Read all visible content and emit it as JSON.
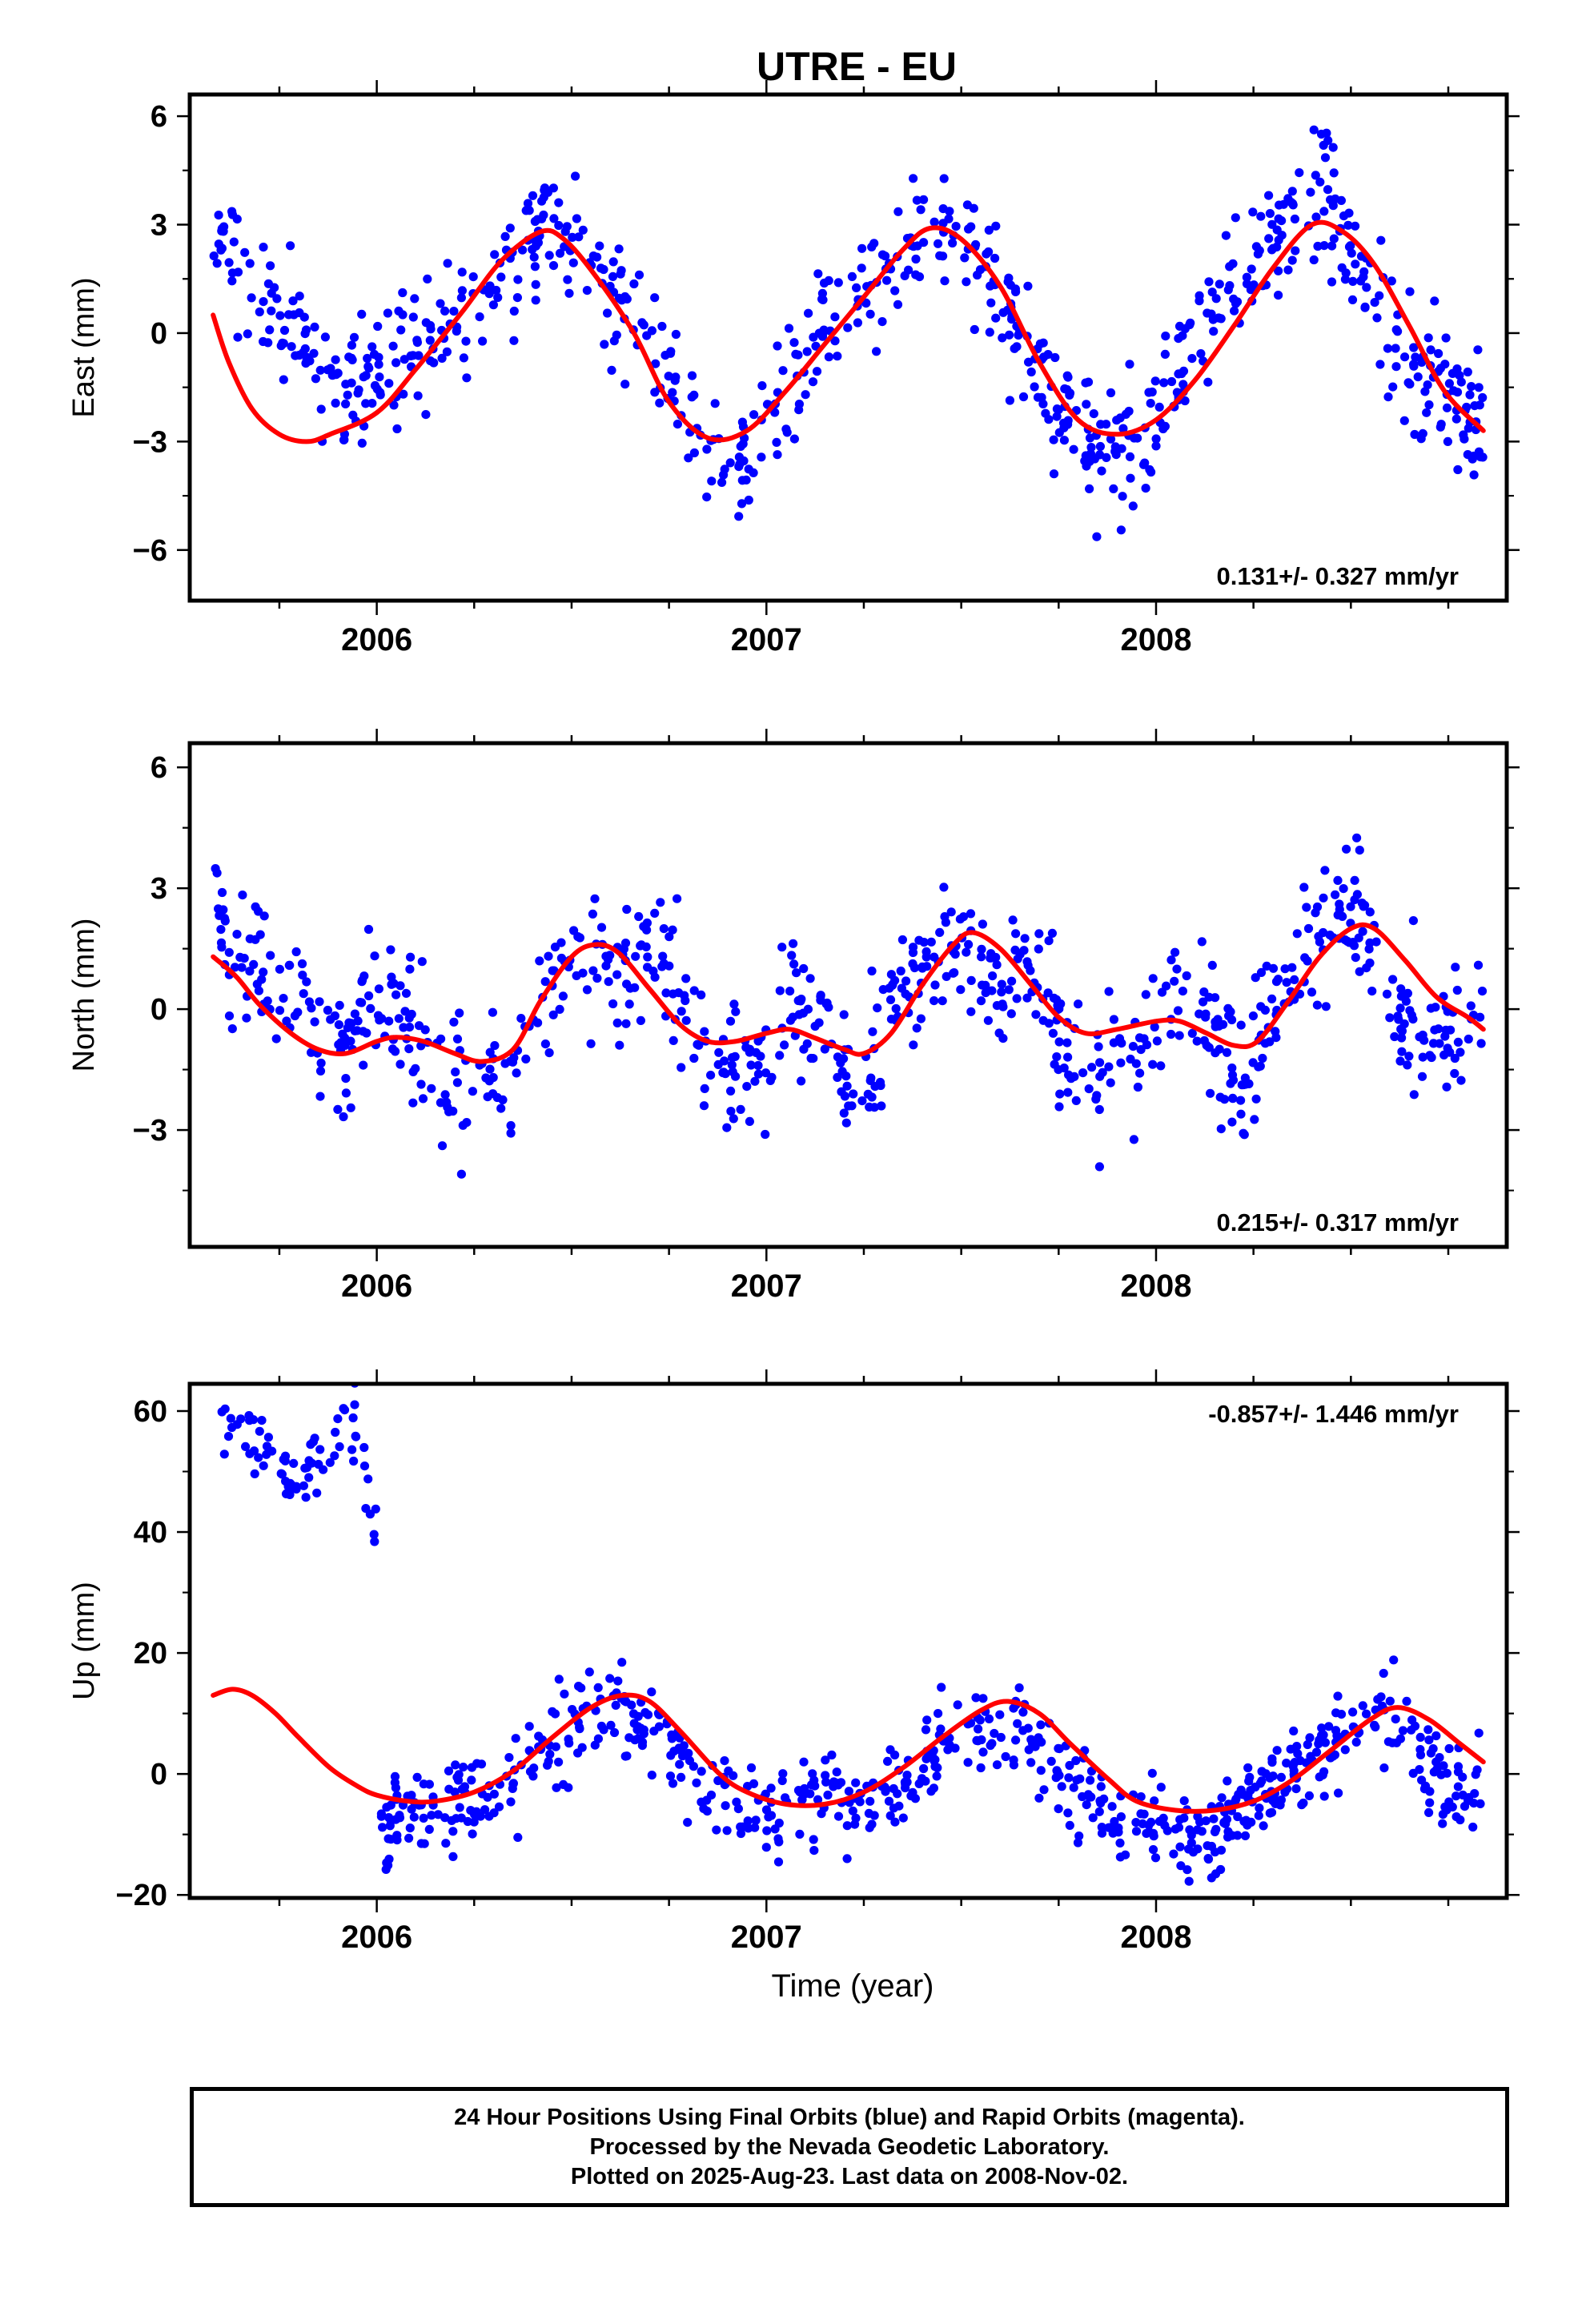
{
  "title": "UTRE - EU",
  "xlabel": "Time (year)",
  "colors": {
    "points": "#0000ff",
    "fit": "#ff0000",
    "axis": "#000000"
  },
  "footer": {
    "line1": "24 Hour Positions Using Final Orbits (blue) and Rapid Orbits (magenta).",
    "line2": "Processed by the Nevada Geodetic Laboratory.",
    "line3": "Plotted on 2025-Aug-23. Last data on 2008-Nov-02."
  },
  "chart_data": [
    {
      "type": "scatter",
      "ylabel": "East (mm)",
      "rate_label": "0.131+/- 0.327 mm/yr",
      "rate_position": "bottom-right",
      "xlim": [
        2005.52,
        2008.9
      ],
      "ylim": [
        -7.4,
        6.6
      ],
      "x_ticks": [
        2006,
        2007,
        2008
      ],
      "y_ticks": [
        -6,
        -3,
        0,
        3,
        6
      ],
      "y_tick_labels": [
        "−6",
        "−3",
        "0",
        "3",
        "6"
      ],
      "series": [
        {
          "role": "observations",
          "color": "#0000ff",
          "anchors": [
            [
              2005.58,
              2.6
            ],
            [
              2005.65,
              1.8
            ],
            [
              2005.75,
              1.0
            ],
            [
              2005.84,
              -1.0
            ],
            [
              2005.9,
              -1.8
            ],
            [
              2006.0,
              -1.0
            ],
            [
              2006.15,
              0.2
            ],
            [
              2006.3,
              1.3
            ],
            [
              2006.45,
              3.2
            ],
            [
              2006.55,
              1.8
            ],
            [
              2006.65,
              0.0
            ],
            [
              2006.75,
              -1.5
            ],
            [
              2006.85,
              -3.2
            ],
            [
              2006.92,
              -4.5
            ],
            [
              2007.0,
              -1.8
            ],
            [
              2007.1,
              -0.8
            ],
            [
              2007.25,
              1.2
            ],
            [
              2007.4,
              3.0
            ],
            [
              2007.5,
              2.6
            ],
            [
              2007.6,
              1.0
            ],
            [
              2007.72,
              -1.5
            ],
            [
              2007.82,
              -2.8
            ],
            [
              2007.92,
              -3.6
            ],
            [
              2008.05,
              -1.2
            ],
            [
              2008.2,
              1.2
            ],
            [
              2008.35,
              3.2
            ],
            [
              2008.42,
              4.2
            ],
            [
              2008.5,
              2.0
            ],
            [
              2008.6,
              0.2
            ],
            [
              2008.7,
              -1.5
            ],
            [
              2008.84,
              -2.5
            ]
          ],
          "scatter": 0.9,
          "n": 780
        },
        {
          "role": "fit",
          "color": "#ff0000",
          "anchors": [
            [
              2005.58,
              0.5
            ],
            [
              2005.62,
              -0.8
            ],
            [
              2005.68,
              -2.1
            ],
            [
              2005.75,
              -2.8
            ],
            [
              2005.82,
              -3.0
            ],
            [
              2005.88,
              -2.8
            ],
            [
              2006.0,
              -2.2
            ],
            [
              2006.1,
              -1.0
            ],
            [
              2006.22,
              0.6
            ],
            [
              2006.32,
              2.0
            ],
            [
              2006.42,
              2.8
            ],
            [
              2006.48,
              2.6
            ],
            [
              2006.56,
              1.6
            ],
            [
              2006.66,
              0.0
            ],
            [
              2006.75,
              -1.9
            ],
            [
              2006.85,
              -2.9
            ],
            [
              2006.95,
              -2.7
            ],
            [
              2007.05,
              -1.6
            ],
            [
              2007.15,
              -0.3
            ],
            [
              2007.25,
              1.0
            ],
            [
              2007.35,
              2.3
            ],
            [
              2007.42,
              2.9
            ],
            [
              2007.5,
              2.6
            ],
            [
              2007.6,
              1.3
            ],
            [
              2007.7,
              -0.8
            ],
            [
              2007.8,
              -2.4
            ],
            [
              2007.9,
              -2.8
            ],
            [
              2008.0,
              -2.4
            ],
            [
              2008.1,
              -1.3
            ],
            [
              2008.2,
              0.2
            ],
            [
              2008.3,
              1.8
            ],
            [
              2008.4,
              3.0
            ],
            [
              2008.48,
              2.8
            ],
            [
              2008.56,
              1.9
            ],
            [
              2008.65,
              0.2
            ],
            [
              2008.74,
              -1.6
            ],
            [
              2008.84,
              -2.7
            ]
          ]
        }
      ]
    },
    {
      "type": "scatter",
      "ylabel": "North (mm)",
      "rate_label": "0.215+/- 0.317 mm/yr",
      "rate_position": "bottom-right",
      "xlim": [
        2005.52,
        2008.9
      ],
      "ylim": [
        -5.9,
        6.6
      ],
      "x_ticks": [
        2006,
        2007,
        2008
      ],
      "y_ticks": [
        -3,
        0,
        3,
        6
      ],
      "y_tick_labels": [
        "−3",
        "0",
        "3",
        "6"
      ],
      "series": [
        {
          "role": "observations",
          "color": "#0000ff",
          "anchors": [
            [
              2005.58,
              2.6
            ],
            [
              2005.62,
              1.5
            ],
            [
              2005.7,
              0.8
            ],
            [
              2005.78,
              0.6
            ],
            [
              2005.85,
              -0.5
            ],
            [
              2005.92,
              -0.8
            ],
            [
              2006.0,
              0.5
            ],
            [
              2006.08,
              -0.5
            ],
            [
              2006.15,
              -1.8
            ],
            [
              2006.25,
              -2.2
            ],
            [
              2006.35,
              -1.2
            ],
            [
              2006.45,
              1.0
            ],
            [
              2006.55,
              1.6
            ],
            [
              2006.65,
              0.8
            ],
            [
              2006.72,
              1.5
            ],
            [
              2006.8,
              -0.3
            ],
            [
              2006.9,
              -1.5
            ],
            [
              2006.98,
              -2.0
            ],
            [
              2007.05,
              0.3
            ],
            [
              2007.15,
              -0.5
            ],
            [
              2007.22,
              -1.8
            ],
            [
              2007.3,
              -0.5
            ],
            [
              2007.4,
              1.2
            ],
            [
              2007.5,
              1.8
            ],
            [
              2007.6,
              0.2
            ],
            [
              2007.68,
              1.0
            ],
            [
              2007.75,
              -0.5
            ],
            [
              2007.85,
              -2.2
            ],
            [
              2007.95,
              -1.2
            ],
            [
              2008.05,
              0.5
            ],
            [
              2008.15,
              -0.5
            ],
            [
              2008.22,
              -2.0
            ],
            [
              2008.3,
              0.2
            ],
            [
              2008.4,
              1.8
            ],
            [
              2008.48,
              2.8
            ],
            [
              2008.56,
              1.8
            ],
            [
              2008.62,
              -0.3
            ],
            [
              2008.7,
              -0.8
            ],
            [
              2008.84,
              -0.5
            ]
          ],
          "scatter": 0.85,
          "n": 780
        },
        {
          "role": "fit",
          "color": "#ff0000",
          "anchors": [
            [
              2005.58,
              1.3
            ],
            [
              2005.64,
              0.8
            ],
            [
              2005.7,
              0.1
            ],
            [
              2005.78,
              -0.6
            ],
            [
              2005.85,
              -1.0
            ],
            [
              2005.92,
              -1.1
            ],
            [
              2006.0,
              -0.8
            ],
            [
              2006.05,
              -0.7
            ],
            [
              2006.12,
              -0.8
            ],
            [
              2006.2,
              -1.1
            ],
            [
              2006.27,
              -1.3
            ],
            [
              2006.35,
              -1.0
            ],
            [
              2006.42,
              0.2
            ],
            [
              2006.5,
              1.3
            ],
            [
              2006.56,
              1.6
            ],
            [
              2006.62,
              1.4
            ],
            [
              2006.7,
              0.5
            ],
            [
              2006.78,
              -0.4
            ],
            [
              2006.85,
              -0.8
            ],
            [
              2006.92,
              -0.8
            ],
            [
              2007.0,
              -0.6
            ],
            [
              2007.06,
              -0.5
            ],
            [
              2007.12,
              -0.7
            ],
            [
              2007.2,
              -1.0
            ],
            [
              2007.25,
              -1.1
            ],
            [
              2007.32,
              -0.6
            ],
            [
              2007.4,
              0.6
            ],
            [
              2007.48,
              1.6
            ],
            [
              2007.53,
              1.9
            ],
            [
              2007.6,
              1.5
            ],
            [
              2007.68,
              0.6
            ],
            [
              2007.75,
              -0.2
            ],
            [
              2007.82,
              -0.6
            ],
            [
              2007.9,
              -0.5
            ],
            [
              2008.0,
              -0.3
            ],
            [
              2008.06,
              -0.3
            ],
            [
              2008.13,
              -0.6
            ],
            [
              2008.2,
              -0.9
            ],
            [
              2008.26,
              -0.8
            ],
            [
              2008.34,
              0.2
            ],
            [
              2008.42,
              1.3
            ],
            [
              2008.5,
              2.0
            ],
            [
              2008.56,
              2.0
            ],
            [
              2008.64,
              1.2
            ],
            [
              2008.72,
              0.3
            ],
            [
              2008.8,
              -0.2
            ],
            [
              2008.84,
              -0.5
            ]
          ]
        }
      ]
    },
    {
      "type": "scatter",
      "ylabel": "Up (mm)",
      "rate_label": "-0.857+/- 1.446 mm/yr",
      "rate_position": "top-right",
      "xlim": [
        2005.52,
        2008.9
      ],
      "ylim": [
        -20.5,
        64.5
      ],
      "x_ticks": [
        2006,
        2007,
        2008
      ],
      "y_ticks": [
        -20,
        0,
        20,
        40,
        60
      ],
      "y_tick_labels": [
        "−20",
        "0",
        "20",
        "40",
        "60"
      ],
      "series": [
        {
          "role": "observations",
          "color": "#0000ff",
          "anchors": [
            [
              2006.0,
              -8
            ],
            [
              2006.08,
              -6
            ],
            [
              2006.15,
              -3
            ],
            [
              2006.25,
              -6
            ],
            [
              2006.35,
              -2
            ],
            [
              2006.45,
              5
            ],
            [
              2006.55,
              9
            ],
            [
              2006.62,
              12
            ],
            [
              2006.7,
              9
            ],
            [
              2006.78,
              3
            ],
            [
              2006.85,
              -2
            ],
            [
              2006.95,
              -6
            ],
            [
              2007.05,
              -6
            ],
            [
              2007.15,
              -4
            ],
            [
              2007.25,
              -5
            ],
            [
              2007.35,
              -1
            ],
            [
              2007.45,
              5
            ],
            [
              2007.55,
              8
            ],
            [
              2007.62,
              10
            ],
            [
              2007.7,
              3
            ],
            [
              2007.8,
              -3
            ],
            [
              2007.9,
              -9
            ],
            [
              2008.0,
              -8
            ],
            [
              2008.1,
              -12
            ],
            [
              2008.2,
              -6
            ],
            [
              2008.3,
              -3
            ],
            [
              2008.4,
              3
            ],
            [
              2008.5,
              7
            ],
            [
              2008.58,
              10
            ],
            [
              2008.66,
              6
            ],
            [
              2008.74,
              -2
            ],
            [
              2008.84,
              -4
            ]
          ],
          "scatter": 3.8,
          "n": 700
        },
        {
          "role": "fit",
          "color": "#ff0000",
          "anchors": [
            [
              2005.58,
              13
            ],
            [
              2005.63,
              14
            ],
            [
              2005.68,
              13
            ],
            [
              2005.74,
              10
            ],
            [
              2005.8,
              6
            ],
            [
              2005.88,
              1
            ],
            [
              2005.95,
              -2
            ],
            [
              2006.0,
              -3.5
            ],
            [
              2006.08,
              -4.5
            ],
            [
              2006.15,
              -4.5
            ],
            [
              2006.25,
              -3
            ],
            [
              2006.35,
              0.5
            ],
            [
              2006.45,
              6
            ],
            [
              2006.55,
              11
            ],
            [
              2006.63,
              13
            ],
            [
              2006.7,
              12
            ],
            [
              2006.78,
              7
            ],
            [
              2006.88,
              0
            ],
            [
              2006.95,
              -3
            ],
            [
              2007.05,
              -5
            ],
            [
              2007.15,
              -5
            ],
            [
              2007.25,
              -3
            ],
            [
              2007.35,
              1
            ],
            [
              2007.45,
              6
            ],
            [
              2007.55,
              10.5
            ],
            [
              2007.62,
              12
            ],
            [
              2007.7,
              10
            ],
            [
              2007.78,
              5
            ],
            [
              2007.88,
              -1
            ],
            [
              2007.95,
              -4.5
            ],
            [
              2008.05,
              -6
            ],
            [
              2008.15,
              -6
            ],
            [
              2008.25,
              -4.5
            ],
            [
              2008.35,
              -1
            ],
            [
              2008.45,
              4
            ],
            [
              2008.55,
              9
            ],
            [
              2008.62,
              11
            ],
            [
              2008.7,
              9
            ],
            [
              2008.78,
              5
            ],
            [
              2008.84,
              2
            ]
          ]
        },
        {
          "role": "outliers",
          "color": "#0000ff",
          "anchors": [
            [
              2005.6,
              58
            ],
            [
              2005.63,
              60
            ],
            [
              2005.66,
              58
            ],
            [
              2005.69,
              56
            ],
            [
              2005.72,
              54
            ],
            [
              2005.75,
              52
            ],
            [
              2005.78,
              48
            ],
            [
              2005.8,
              46
            ],
            [
              2005.95,
              60
            ],
            [
              2005.96,
              54
            ],
            [
              2005.97,
              48
            ],
            [
              2005.98,
              44
            ],
            [
              2005.99,
              40
            ],
            [
              2006.0,
              37
            ]
          ],
          "scatter": 3.0,
          "n": 75
        }
      ]
    }
  ]
}
